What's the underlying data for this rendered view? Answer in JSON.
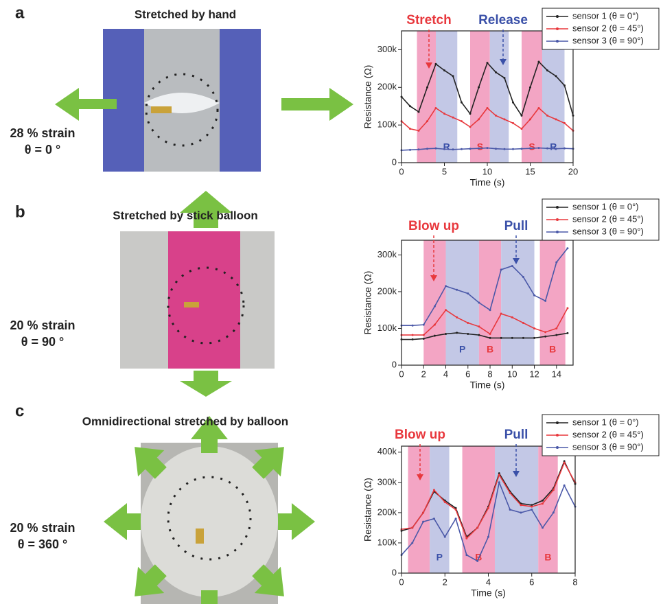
{
  "panels": [
    {
      "letter": "a",
      "title": "Stretched by hand",
      "strain": "28 % strain",
      "angle": "θ  = 0 °"
    },
    {
      "letter": "b",
      "title": "Stretched by stick balloon",
      "strain": "20 % strain",
      "angle": "θ  = 90 °"
    },
    {
      "letter": "c",
      "title": "Omnidirectional stretched by balloon",
      "strain": "20 % strain",
      "angle": "θ  = 360 °"
    }
  ],
  "chart_data": [
    {
      "type": "line",
      "x_label": "Time (s)",
      "y_label": "Resistance (Ω)",
      "xlim": [
        0,
        20
      ],
      "xticks": [
        0,
        5,
        10,
        15,
        20
      ],
      "ylim": [
        0,
        350000
      ],
      "yticks": [
        0,
        {
          "value": 100000,
          "label": "100k"
        },
        {
          "value": 200000,
          "label": "200k"
        },
        {
          "value": 300000,
          "label": "300k"
        }
      ],
      "legend": "upper right",
      "annotations": [
        {
          "text": "Stretch",
          "color": "#e8383d"
        },
        {
          "text": "Release",
          "color": "#3a50a8"
        }
      ],
      "regions": [
        {
          "start": 1.8,
          "end": 4,
          "color": "#f3a5c4"
        },
        {
          "start": 4,
          "end": 6.5,
          "color": "#c3c8e6",
          "label": "R"
        },
        {
          "start": 8,
          "end": 10.3,
          "color": "#f3a5c4",
          "label": "S"
        },
        {
          "start": 10.3,
          "end": 12.5,
          "color": "#c3c8e6"
        },
        {
          "start": 14,
          "end": 16.4,
          "color": "#f3a5c4",
          "label": "S"
        },
        {
          "start": 16.4,
          "end": 19,
          "color": "#c3c8e6",
          "label": "R"
        }
      ],
      "x": [
        0,
        1,
        2,
        3,
        4,
        5,
        6,
        7,
        8,
        9,
        10,
        11,
        12,
        13,
        14,
        15,
        16,
        17,
        18,
        19,
        20
      ],
      "series": [
        {
          "name": "sensor 1 (θ = 0°)",
          "color": "#222222",
          "values": [
            175000,
            150000,
            135000,
            200000,
            262000,
            245000,
            230000,
            160000,
            130000,
            200000,
            265000,
            240000,
            225000,
            160000,
            125000,
            200000,
            268000,
            245000,
            230000,
            205000,
            125000
          ]
        },
        {
          "name": "sensor 2 (θ = 45°)",
          "color": "#e8383d",
          "values": [
            110000,
            90000,
            85000,
            110000,
            145000,
            130000,
            120000,
            110000,
            95000,
            115000,
            145000,
            125000,
            115000,
            105000,
            90000,
            115000,
            145000,
            125000,
            115000,
            105000,
            85000
          ]
        },
        {
          "name": "sensor 3 (θ = 90°)",
          "color": "#4a58a8",
          "values": [
            33000,
            34000,
            35000,
            37000,
            38000,
            36000,
            35000,
            36000,
            37000,
            38000,
            39000,
            37000,
            36000,
            36000,
            37000,
            38000,
            39000,
            38000,
            37000,
            38000,
            37000
          ]
        }
      ]
    },
    {
      "type": "line",
      "x_label": "Time (s)",
      "y_label": "Resistance (Ω)",
      "xlim": [
        0,
        15.5
      ],
      "xticks": [
        0,
        2,
        4,
        6,
        8,
        10,
        12,
        14
      ],
      "ylim": [
        0,
        340000
      ],
      "yticks": [
        0,
        {
          "value": 100000,
          "label": "100k"
        },
        {
          "value": 200000,
          "label": "200k"
        },
        {
          "value": 300000,
          "label": "300k"
        }
      ],
      "legend": "upper right",
      "annotations": [
        {
          "text": "Blow up",
          "color": "#e8383d"
        },
        {
          "text": "Pull",
          "color": "#3a50a8"
        }
      ],
      "regions": [
        {
          "start": 2,
          "end": 4,
          "color": "#f3a5c4"
        },
        {
          "start": 4,
          "end": 7,
          "color": "#c3c8e6",
          "label": "P"
        },
        {
          "start": 7,
          "end": 9,
          "color": "#f3a5c4",
          "label": "B"
        },
        {
          "start": 9,
          "end": 12,
          "color": "#c3c8e6"
        },
        {
          "start": 12.5,
          "end": 14.8,
          "color": "#f3a5c4",
          "label": "B"
        }
      ],
      "x": [
        0,
        1,
        2,
        3,
        4,
        5,
        6,
        7,
        8,
        9,
        10,
        11,
        12,
        13,
        14,
        15
      ],
      "series": [
        {
          "name": "sensor 1 (θ = 0°)",
          "color": "#222222",
          "values": [
            70000,
            70000,
            72000,
            80000,
            85000,
            88000,
            85000,
            82000,
            74000,
            74000,
            74000,
            74000,
            74000,
            78000,
            82000,
            87000
          ]
        },
        {
          "name": "sensor 2 (θ = 45°)",
          "color": "#e8383d",
          "values": [
            82000,
            82000,
            82000,
            110000,
            150000,
            130000,
            115000,
            105000,
            85000,
            140000,
            130000,
            115000,
            100000,
            90000,
            100000,
            155000
          ]
        },
        {
          "name": "sensor 3 (θ = 90°)",
          "color": "#4a58a8",
          "values": [
            108000,
            108000,
            110000,
            160000,
            215000,
            205000,
            195000,
            170000,
            150000,
            260000,
            270000,
            240000,
            190000,
            175000,
            280000,
            318000
          ]
        }
      ]
    },
    {
      "type": "line",
      "x_label": "Time (s)",
      "y_label": "Resistance (Ω)",
      "xlim": [
        0,
        8
      ],
      "xticks": [
        0,
        2,
        4,
        6,
        8
      ],
      "ylim": [
        0,
        420000
      ],
      "yticks": [
        0,
        {
          "value": 100000,
          "label": "100k"
        },
        {
          "value": 200000,
          "label": "200k"
        },
        {
          "value": 300000,
          "label": "300k"
        },
        {
          "value": 400000,
          "label": "400k"
        }
      ],
      "legend": "upper right",
      "annotations": [
        {
          "text": "Blow up",
          "color": "#e8383d"
        },
        {
          "text": "Pull",
          "color": "#3a50a8"
        }
      ],
      "regions": [
        {
          "start": 0.3,
          "end": 1.3,
          "color": "#f3a5c4"
        },
        {
          "start": 1.3,
          "end": 2.2,
          "color": "#c3c8e6",
          "label": "P"
        },
        {
          "start": 2.8,
          "end": 4.3,
          "color": "#f3a5c4",
          "label": "B"
        },
        {
          "start": 4.3,
          "end": 6.3,
          "color": "#c3c8e6"
        },
        {
          "start": 6.3,
          "end": 7.2,
          "color": "#f3a5c4",
          "label": "B"
        }
      ],
      "x": [
        0,
        0.5,
        1,
        1.5,
        2,
        2.5,
        3,
        3.5,
        4,
        4.5,
        5,
        5.5,
        6,
        6.5,
        7,
        7.5,
        8
      ],
      "series": [
        {
          "name": "sensor 1 (θ = 0°)",
          "color": "#222222",
          "values": [
            140000,
            150000,
            200000,
            270000,
            240000,
            215000,
            120000,
            150000,
            220000,
            330000,
            270000,
            230000,
            225000,
            240000,
            280000,
            370000,
            295000
          ]
        },
        {
          "name": "sensor 2 (θ = 45°)",
          "color": "#e8383d",
          "values": [
            145000,
            150000,
            200000,
            275000,
            235000,
            210000,
            115000,
            150000,
            215000,
            325000,
            265000,
            225000,
            220000,
            230000,
            275000,
            365000,
            300000
          ]
        },
        {
          "name": "sensor 3 (θ = 90°)",
          "color": "#4a58a8",
          "values": [
            60000,
            100000,
            170000,
            180000,
            120000,
            180000,
            60000,
            40000,
            120000,
            300000,
            210000,
            200000,
            210000,
            150000,
            200000,
            290000,
            220000
          ]
        }
      ]
    }
  ]
}
